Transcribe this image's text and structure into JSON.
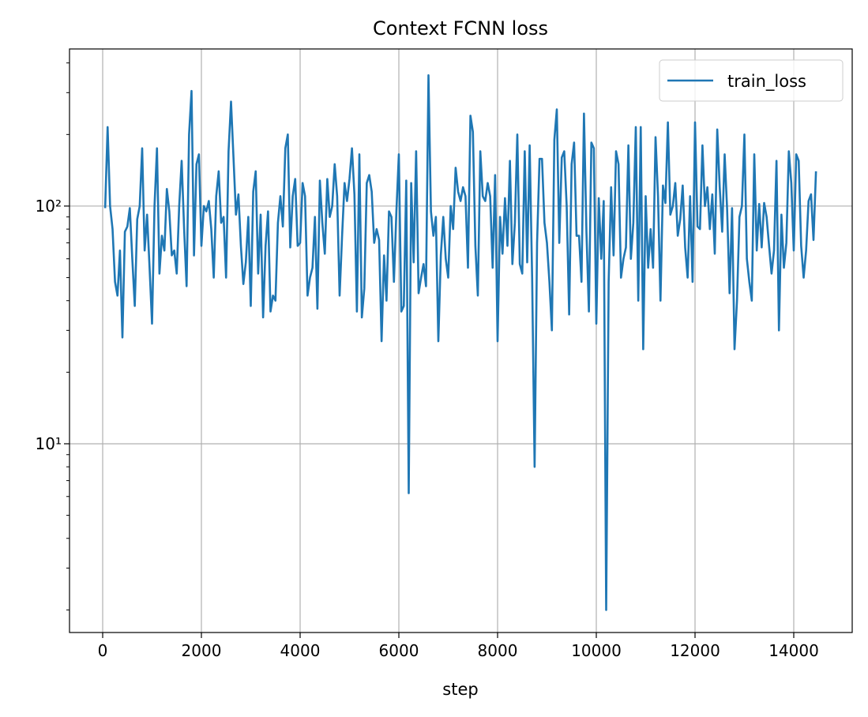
{
  "chart_data": {
    "type": "line",
    "title": "Context FCNN loss",
    "xlabel": "step",
    "x": [
      50,
      100,
      150,
      200,
      250,
      300,
      350,
      400,
      450,
      500,
      550,
      600,
      650,
      700,
      750,
      800,
      850,
      900,
      950,
      1000,
      1050,
      1100,
      1150,
      1200,
      1250,
      1300,
      1350,
      1400,
      1450,
      1500,
      1550,
      1600,
      1650,
      1700,
      1750,
      1800,
      1850,
      1900,
      1950,
      2000,
      2050,
      2100,
      2150,
      2200,
      2250,
      2300,
      2350,
      2400,
      2450,
      2500,
      2550,
      2600,
      2650,
      2700,
      2750,
      2800,
      2850,
      2900,
      2950,
      3000,
      3050,
      3100,
      3150,
      3200,
      3250,
      3300,
      3350,
      3400,
      3450,
      3500,
      3550,
      3600,
      3650,
      3700,
      3750,
      3800,
      3850,
      3900,
      3950,
      4000,
      4050,
      4100,
      4150,
      4200,
      4250,
      4300,
      4350,
      4400,
      4450,
      4500,
      4550,
      4600,
      4650,
      4700,
      4750,
      4800,
      4850,
      4900,
      4950,
      5000,
      5050,
      5100,
      5150,
      5200,
      5250,
      5300,
      5350,
      5400,
      5450,
      5500,
      5550,
      5600,
      5650,
      5700,
      5750,
      5800,
      5850,
      5900,
      5950,
      6000,
      6050,
      6100,
      6150,
      6200,
      6250,
      6300,
      6350,
      6400,
      6450,
      6500,
      6550,
      6600,
      6650,
      6700,
      6750,
      6800,
      6850,
      6900,
      6950,
      7000,
      7050,
      7100,
      7150,
      7200,
      7250,
      7300,
      7350,
      7400,
      7450,
      7500,
      7550,
      7600,
      7650,
      7700,
      7750,
      7800,
      7850,
      7900,
      7950,
      8000,
      8050,
      8100,
      8150,
      8200,
      8250,
      8300,
      8350,
      8400,
      8450,
      8500,
      8550,
      8600,
      8650,
      8700,
      8750,
      8800,
      8850,
      8900,
      8950,
      9000,
      9050,
      9100,
      9150,
      9200,
      9250,
      9300,
      9350,
      9400,
      9450,
      9500,
      9550,
      9600,
      9650,
      9700,
      9750,
      9800,
      9850,
      9900,
      9950,
      10000,
      10050,
      10100,
      10150,
      10200,
      10250,
      10300,
      10350,
      10400,
      10450,
      10500,
      10550,
      10600,
      10650,
      10700,
      10750,
      10800,
      10850,
      10900,
      10950,
      11000,
      11050,
      11100,
      11150,
      11200,
      11250,
      11300,
      11350,
      11400,
      11450,
      11500,
      11550,
      11600,
      11650,
      11700,
      11750,
      11800,
      11850,
      11900,
      11950,
      12000,
      12050,
      12100,
      12150,
      12200,
      12250,
      12300,
      12350,
      12400,
      12450,
      12500,
      12550,
      12600,
      12650,
      12700,
      12750,
      12800,
      12850,
      12900,
      12950,
      13000,
      13050,
      13100,
      13150,
      13200,
      13250,
      13300,
      13350,
      13400,
      13450,
      13500,
      13550,
      13600,
      13650,
      13700,
      13750,
      13800,
      13850,
      13900,
      13950,
      14000,
      14050,
      14100,
      14150,
      14200,
      14250,
      14300,
      14350,
      14400,
      14450
    ],
    "series": [
      {
        "name": "train_loss",
        "color": "#1f77b4",
        "values": [
          98,
          215,
          100,
          80,
          48,
          42,
          65,
          28,
          78,
          82,
          98,
          60,
          38,
          88,
          100,
          175,
          65,
          92,
          55,
          32,
          100,
          175,
          52,
          75,
          65,
          118,
          95,
          62,
          65,
          52,
          100,
          155,
          80,
          46,
          200,
          305,
          62,
          150,
          165,
          68,
          100,
          95,
          105,
          80,
          50,
          110,
          140,
          85,
          90,
          50,
          170,
          275,
          160,
          92,
          112,
          68,
          47,
          58,
          90,
          38,
          115,
          140,
          52,
          92,
          34,
          68,
          95,
          36,
          42,
          40,
          85,
          110,
          82,
          175,
          200,
          67,
          110,
          130,
          68,
          70,
          125,
          110,
          42,
          50,
          55,
          90,
          37,
          128,
          85,
          63,
          130,
          90,
          100,
          150,
          110,
          42,
          75,
          125,
          105,
          130,
          175,
          112,
          36,
          165,
          34,
          45,
          125,
          135,
          115,
          70,
          80,
          72,
          27,
          62,
          40,
          95,
          90,
          48,
          95,
          165,
          36,
          38,
          128,
          6.2,
          125,
          58,
          170,
          43,
          50,
          57,
          46,
          355,
          95,
          75,
          90,
          27,
          62,
          90,
          60,
          50,
          100,
          80,
          145,
          115,
          105,
          120,
          110,
          55,
          240,
          205,
          68,
          42,
          170,
          110,
          105,
          125,
          110,
          55,
          135,
          27,
          90,
          63,
          108,
          68,
          155,
          57,
          85,
          200,
          57,
          52,
          170,
          58,
          180,
          50,
          8,
          70,
          158,
          158,
          85,
          70,
          48,
          30,
          190,
          255,
          70,
          160,
          170,
          100,
          35,
          150,
          185,
          75,
          75,
          48,
          245,
          78,
          36,
          185,
          175,
          32,
          108,
          60,
          105,
          2.0,
          48,
          120,
          62,
          170,
          150,
          50,
          60,
          67,
          180,
          60,
          85,
          215,
          40,
          215,
          25,
          110,
          55,
          80,
          55,
          195,
          110,
          40,
          122,
          103,
          225,
          92,
          100,
          125,
          75,
          88,
          122,
          67,
          50,
          110,
          48,
          225,
          82,
          80,
          180,
          100,
          120,
          80,
          112,
          63,
          210,
          120,
          78,
          165,
          97,
          43,
          98,
          25,
          40,
          90,
          100,
          200,
          60,
          48,
          40,
          165,
          65,
          102,
          67,
          103,
          90,
          68,
          52,
          65,
          155,
          30,
          92,
          55,
          70,
          170,
          125,
          65,
          165,
          155,
          68,
          50,
          65,
          105,
          112,
          72,
          140
        ]
      }
    ],
    "xlim": [
      -672,
      15184
    ],
    "xticks": [
      0,
      2000,
      4000,
      6000,
      8000,
      10000,
      12000,
      14000
    ],
    "ylim": [
      1.607,
      458
    ],
    "ylog": true,
    "yticks": [
      {
        "value": 10,
        "label": "10¹"
      },
      {
        "value": 100,
        "label": "10²"
      }
    ],
    "yminorticks": [
      2,
      3,
      4,
      5,
      6,
      7,
      8,
      9,
      20,
      30,
      40,
      50,
      60,
      70,
      80,
      90,
      200,
      300,
      400
    ],
    "grid": true,
    "legend": "upper right"
  }
}
